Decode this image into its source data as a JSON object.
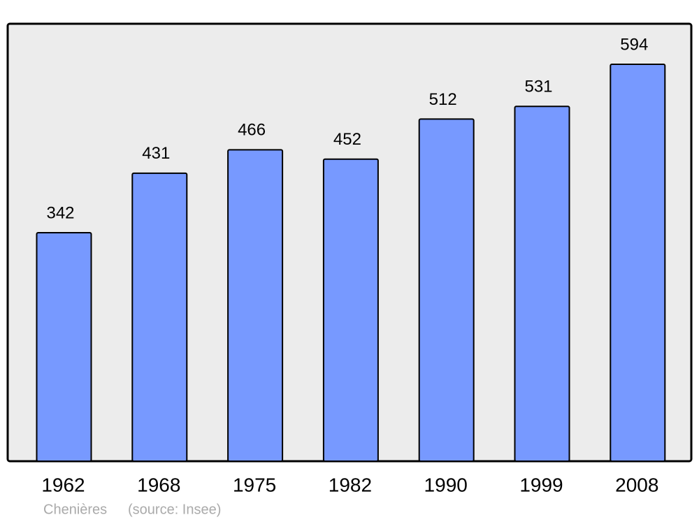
{
  "chart_data": {
    "type": "bar",
    "categories": [
      "1962",
      "1968",
      "1975",
      "1982",
      "1990",
      "1999",
      "2008"
    ],
    "values": [
      342,
      431,
      466,
      452,
      512,
      531,
      594
    ],
    "color": "#7799ff",
    "caption": "Chenières",
    "source": "(source: Insee)"
  }
}
